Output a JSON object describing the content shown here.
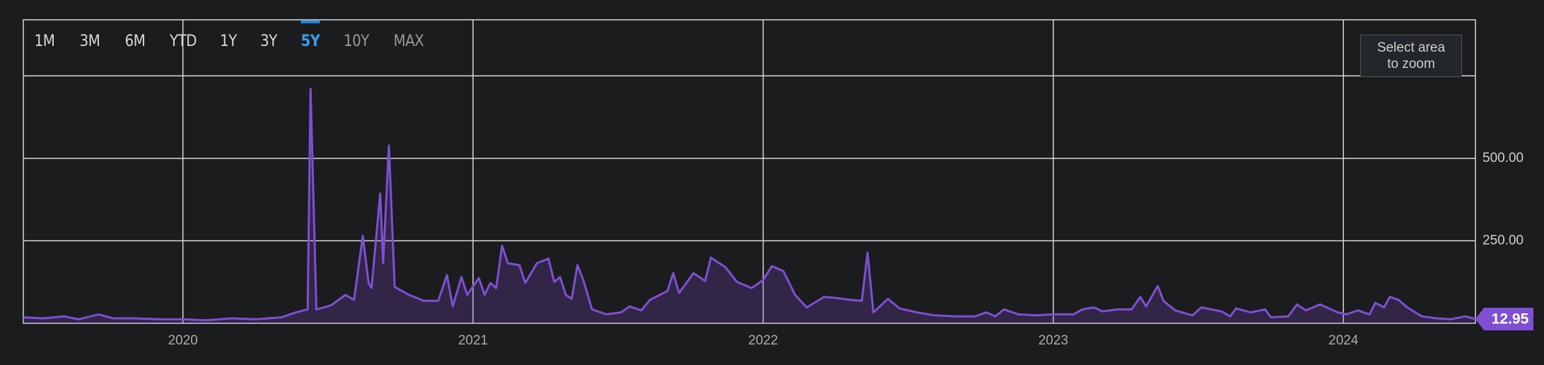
{
  "chart_data": {
    "type": "line",
    "controls": {
      "ranges": [
        "1M",
        "3M",
        "6M",
        "YTD",
        "1Y",
        "3Y",
        "5Y",
        "10Y",
        "MAX"
      ],
      "active_range": "5Y",
      "disabled_ranges": [
        "10Y",
        "MAX"
      ],
      "zoom_hint": "Select area to zoom"
    },
    "x": [
      2019.45,
      2019.52,
      2019.59,
      2019.64,
      2019.71,
      2019.76,
      2019.83,
      2019.92,
      2020.0,
      2020.08,
      2020.17,
      2020.25,
      2020.34,
      2020.39,
      2020.43,
      2020.44,
      2020.46,
      2020.51,
      2020.56,
      2020.59,
      2020.62,
      2020.64,
      2020.65,
      2020.68,
      2020.69,
      2020.71,
      2020.73,
      2020.78,
      2020.83,
      2020.88,
      2020.91,
      2020.93,
      2020.96,
      2020.98,
      2021.02,
      2021.04,
      2021.06,
      2021.08,
      2021.1,
      2021.12,
      2021.16,
      2021.18,
      2021.22,
      2021.26,
      2021.28,
      2021.3,
      2021.32,
      2021.34,
      2021.36,
      2021.38,
      2021.41,
      2021.46,
      2021.51,
      2021.54,
      2021.58,
      2021.61,
      2021.67,
      2021.69,
      2021.71,
      2021.76,
      2021.8,
      2021.82,
      2021.87,
      2021.91,
      2021.96,
      2022.0,
      2022.03,
      2022.07,
      2022.11,
      2022.15,
      2022.21,
      2022.25,
      2022.3,
      2022.34,
      2022.36,
      2022.38,
      2022.43,
      2022.47,
      2022.53,
      2022.59,
      2022.66,
      2022.73,
      2022.77,
      2022.8,
      2022.83,
      2022.88,
      2022.94,
      2023.0,
      2023.07,
      2023.1,
      2023.14,
      2023.17,
      2023.22,
      2023.27,
      2023.3,
      2023.32,
      2023.36,
      2023.38,
      2023.42,
      2023.48,
      2023.51,
      2023.58,
      2023.61,
      2023.63,
      2023.68,
      2023.73,
      2023.75,
      2023.81,
      2023.84,
      2023.87,
      2023.92,
      2023.98,
      2024.01,
      2024.05,
      2024.09,
      2024.11,
      2024.14,
      2024.16,
      2024.19,
      2024.22,
      2024.27,
      2024.32,
      2024.37,
      2024.42,
      2024.455
    ],
    "values": [
      18,
      15,
      21,
      12,
      27,
      15,
      15,
      12,
      12,
      9,
      15,
      12,
      18,
      33,
      42,
      711,
      42,
      54,
      86,
      71,
      265,
      122,
      107,
      393,
      182,
      539,
      110,
      86,
      68,
      68,
      146,
      51,
      140,
      86,
      137,
      86,
      122,
      107,
      235,
      182,
      176,
      122,
      182,
      196,
      125,
      140,
      86,
      74,
      176,
      131,
      42,
      27,
      33,
      51,
      39,
      71,
      98,
      152,
      92,
      152,
      128,
      199,
      170,
      125,
      107,
      131,
      173,
      158,
      86,
      48,
      80,
      77,
      71,
      68,
      214,
      33,
      74,
      45,
      33,
      24,
      21,
      21,
      33,
      21,
      42,
      27,
      24,
      27,
      27,
      42,
      48,
      36,
      42,
      42,
      80,
      51,
      113,
      68,
      39,
      24,
      48,
      36,
      21,
      45,
      33,
      42,
      18,
      21,
      57,
      39,
      57,
      33,
      27,
      39,
      27,
      62,
      48,
      80,
      71,
      48,
      21,
      15,
      12,
      21,
      12.95
    ],
    "color": "#7e4fd4",
    "xlim": [
      2019.45,
      2024.455
    ],
    "xticks": [
      2020,
      2021,
      2022,
      2023,
      2024
    ],
    "ylim": [
      0,
      920
    ],
    "yticks": [
      {
        "value": 250,
        "label": "250.00"
      },
      {
        "value": 500,
        "label": "500.00"
      },
      {
        "value": 750,
        "label": null
      }
    ],
    "grid": true
  }
}
